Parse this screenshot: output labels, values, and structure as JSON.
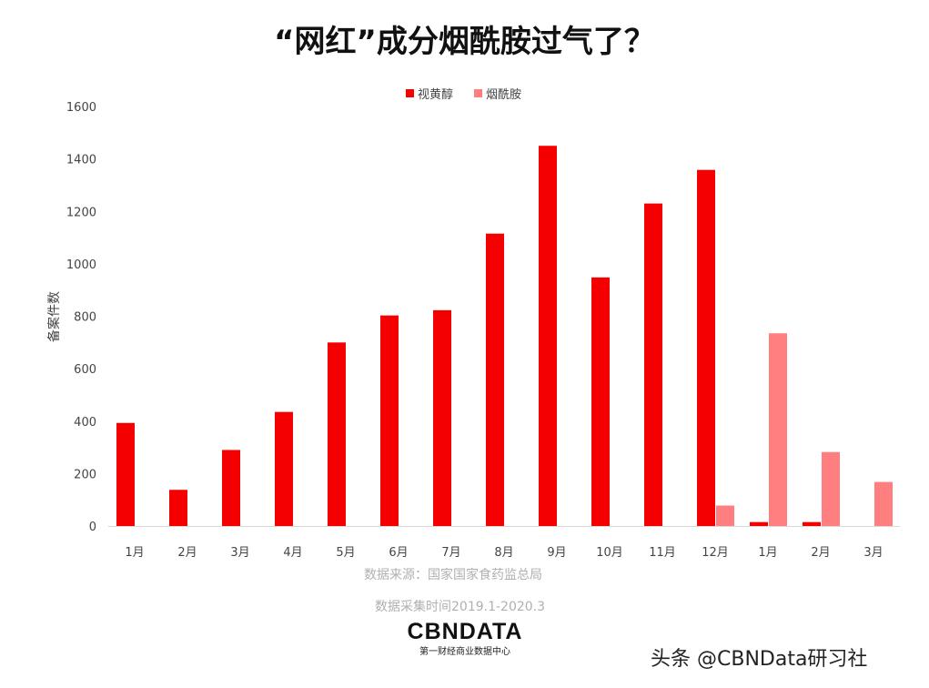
{
  "chart_data": {
    "type": "bar",
    "title": "“网红”成分烟酰胺过气了？",
    "ylabel": "备案件数",
    "xlabel": "",
    "ylim": [
      0,
      1600
    ],
    "yticks": [
      0,
      200,
      400,
      600,
      800,
      1000,
      1200,
      1400,
      1600
    ],
    "grid": false,
    "legend_position": "top",
    "categories": [
      "1月",
      "2月",
      "3月",
      "4月",
      "5月",
      "6月",
      "7月",
      "8月",
      "9月",
      "10月",
      "11月",
      "12月",
      "1月",
      "2月",
      "3月"
    ],
    "series": [
      {
        "name": "视黄醇",
        "color": "#f50000",
        "values": [
          393,
          138,
          290,
          435,
          700,
          803,
          823,
          1115,
          1450,
          948,
          1230,
          1358,
          15,
          15,
          0
        ]
      },
      {
        "name": "烟酰胺",
        "color": "#ff7f80",
        "values": [
          0,
          0,
          0,
          0,
          0,
          0,
          0,
          0,
          0,
          0,
          0,
          78,
          735,
          282,
          168
        ]
      }
    ]
  },
  "footer": {
    "source": "数据来源：国家国家食药监总局",
    "period": "数据采集时间2019.1-2020.3",
    "logo_text": "CBNDATA",
    "logo_subtitle": "第一财经商业数据中心",
    "credit": "头条 @CBNData研习社"
  }
}
